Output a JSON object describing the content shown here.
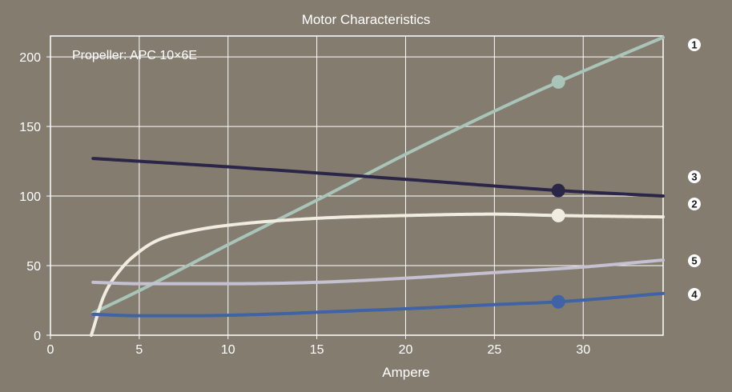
{
  "chart_data": {
    "type": "line",
    "title": "Motor Characteristics",
    "xlabel": "Ampere",
    "ylabel": "",
    "xlim": [
      0,
      34.5
    ],
    "ylim": [
      0,
      215
    ],
    "xticks": [
      0,
      5,
      10,
      15,
      20,
      25,
      30
    ],
    "yticks": [
      0,
      50,
      100,
      150,
      200
    ],
    "grid": true,
    "annotation": "Propeller:  APC 10×6E",
    "marker_x": 28.6,
    "series": [
      {
        "name": "1",
        "color": "#a9c4b8",
        "x": [
          2.4,
          5,
          10,
          15,
          20,
          25,
          28.6,
          34.5
        ],
        "y": [
          16,
          32,
          65,
          97,
          130,
          161,
          182,
          214
        ]
      },
      {
        "name": "2",
        "color": "#f1ece0",
        "x": [
          2.3,
          3,
          4,
          5,
          6,
          8,
          10,
          15,
          20,
          25,
          28.6,
          34.5
        ],
        "y": [
          0,
          28,
          48,
          60,
          68,
          75,
          79,
          84,
          86,
          87,
          86,
          85
        ]
      },
      {
        "name": "3",
        "color": "#2b2548",
        "x": [
          2.4,
          10,
          20,
          28.6,
          34.5
        ],
        "y": [
          127,
          121,
          112,
          104,
          100
        ]
      },
      {
        "name": "4",
        "color": "#3f63a5",
        "x": [
          2.4,
          5,
          8,
          12,
          16,
          20,
          25,
          28.6,
          34.5
        ],
        "y": [
          15,
          14,
          14,
          15,
          17,
          19,
          22,
          24,
          30
        ]
      },
      {
        "name": "5",
        "color": "#c5c1d2",
        "x": [
          2.4,
          5,
          10,
          15,
          20,
          25,
          30,
          34.5
        ],
        "y": [
          38,
          37,
          37,
          38,
          41,
          45,
          49,
          54
        ]
      }
    ],
    "markers_on": [
      "1",
      "2",
      "3",
      "4"
    ]
  }
}
